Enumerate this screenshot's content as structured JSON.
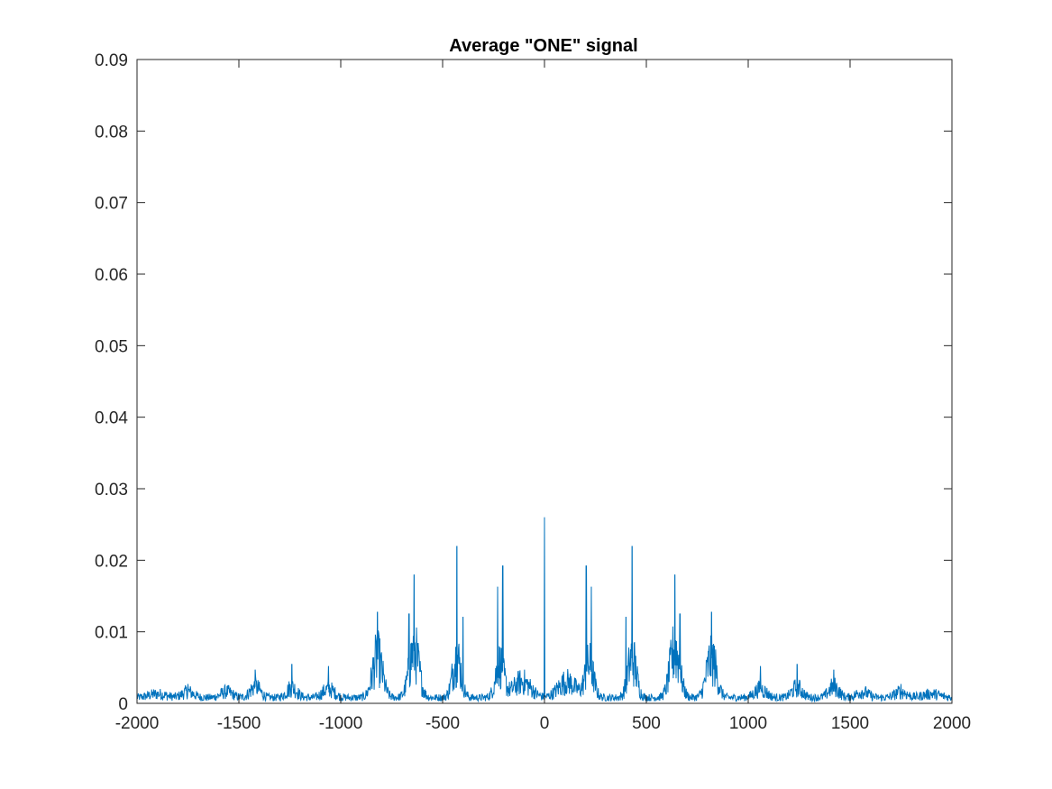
{
  "chart_data": {
    "type": "line",
    "title": "Average \"ONE\" signal",
    "xlabel": "",
    "ylabel": "",
    "xlim": [
      -2000,
      2000
    ],
    "ylim": [
      0,
      0.09
    ],
    "grid": false,
    "legend": "none",
    "line_color": "#0072BD",
    "x_ticks": [
      -2000,
      -1500,
      -1000,
      -500,
      0,
      500,
      1000,
      1500,
      2000
    ],
    "x_tick_labels": [
      "-2000",
      "-1500",
      "-1000",
      "-500",
      "0",
      "500",
      "1000",
      "1500",
      "2000"
    ],
    "y_ticks": [
      0,
      0.01,
      0.02,
      0.03,
      0.04,
      0.05,
      0.06,
      0.07,
      0.08,
      0.09
    ],
    "y_tick_labels": [
      "0",
      "0.01",
      "0.02",
      "0.03",
      "0.04",
      "0.05",
      "0.06",
      "0.07",
      "0.08",
      "0.09"
    ],
    "series": [
      {
        "peaks": [
          {
            "x": 0,
            "y": 0.026
          },
          {
            "x": -205,
            "y": 0.0192
          },
          {
            "x": 205,
            "y": 0.0192
          },
          {
            "x": -230,
            "y": 0.0163
          },
          {
            "x": 230,
            "y": 0.0163
          },
          {
            "x": -430,
            "y": 0.022
          },
          {
            "x": 430,
            "y": 0.022
          },
          {
            "x": -400,
            "y": 0.0121
          },
          {
            "x": 400,
            "y": 0.0121
          },
          {
            "x": -640,
            "y": 0.018
          },
          {
            "x": 640,
            "y": 0.018
          },
          {
            "x": -665,
            "y": 0.0125
          },
          {
            "x": 665,
            "y": 0.0125
          },
          {
            "x": -820,
            "y": 0.0128
          },
          {
            "x": 820,
            "y": 0.0128
          },
          {
            "x": -1060,
            "y": 0.0052
          },
          {
            "x": 1060,
            "y": 0.0052
          },
          {
            "x": -1240,
            "y": 0.0055
          },
          {
            "x": 1240,
            "y": 0.0055
          },
          {
            "x": -1420,
            "y": 0.0047
          },
          {
            "x": 1420,
            "y": 0.0047
          },
          {
            "x": -1750,
            "y": 0.0027
          },
          {
            "x": 1750,
            "y": 0.0027
          }
        ],
        "baseline": 0.0008
      }
    ]
  }
}
